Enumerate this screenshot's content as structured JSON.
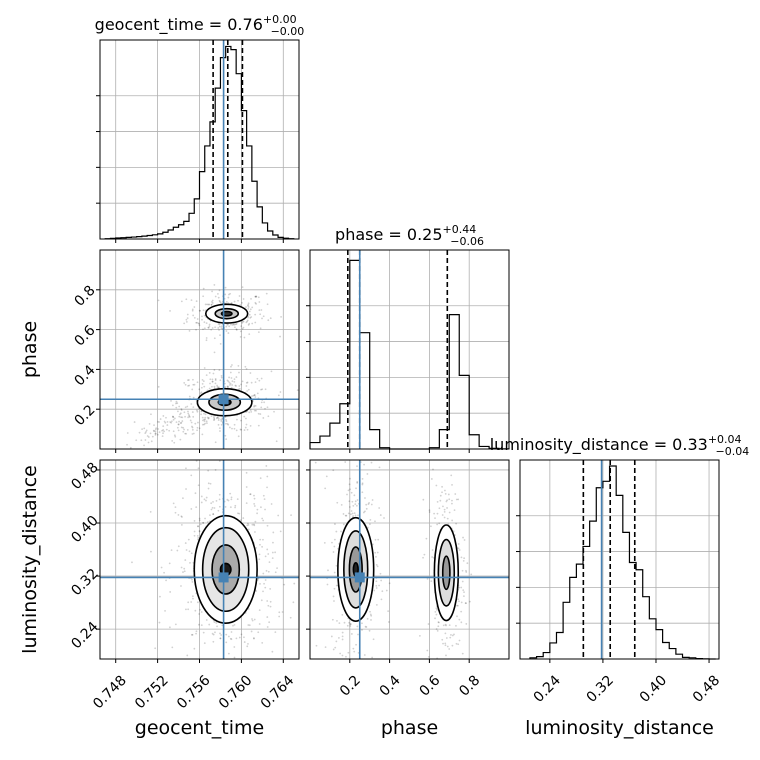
{
  "chart_data": {
    "type": "corner",
    "truth_color": "#4682b4",
    "hist_color": "#000000",
    "grid": true,
    "parameters": [
      {
        "name": "geocent_time",
        "xlim": [
          0.7465,
          0.7655
        ],
        "xticks": [
          0.748,
          0.752,
          0.756,
          0.76,
          0.764
        ],
        "xtick_labels": [
          "0.748",
          "0.752",
          "0.756",
          "0.760",
          "0.764"
        ],
        "truth": 0.7583,
        "quantiles": [
          0.7573,
          0.7587,
          0.7601
        ],
        "title_prefix": "geocent_time = ",
        "title_value": "0.76",
        "title_plus": "+0.00",
        "title_minus": "−0.00",
        "hist_edges": [
          0.747,
          0.7475,
          0.748,
          0.7485,
          0.749,
          0.7495,
          0.75,
          0.7505,
          0.751,
          0.7515,
          0.752,
          0.7525,
          0.753,
          0.7535,
          0.754,
          0.7545,
          0.755,
          0.7555,
          0.756,
          0.7565,
          0.757,
          0.7575,
          0.758,
          0.7585,
          0.759,
          0.7595,
          0.76,
          0.7605,
          0.761,
          0.7615,
          0.762,
          0.7625,
          0.763,
          0.7635,
          0.764,
          0.7645,
          0.765
        ],
        "hist_counts": [
          0.2,
          0.4,
          0.6,
          0.8,
          1.0,
          1.2,
          1.5,
          1.8,
          2.2,
          2.6,
          3.2,
          4.2,
          5.6,
          7.3,
          8.9,
          11,
          16,
          25,
          42,
          58,
          73,
          94,
          113,
          120,
          118,
          103,
          80,
          58,
          36,
          20,
          10,
          5,
          2.5,
          1.0,
          0.5,
          0.2
        ],
        "hist_ymax": 124
      },
      {
        "name": "phase",
        "xlim": [
          0.0,
          1.0
        ],
        "xticks": [
          0.2,
          0.4,
          0.6,
          0.8
        ],
        "xtick_labels": [
          "0.2",
          "0.4",
          "0.6",
          "0.8"
        ],
        "yticks": [
          0.2,
          0.4,
          0.6,
          0.8
        ],
        "ytick_labels": [
          "0.2",
          "0.4",
          "0.6",
          "0.8"
        ],
        "truth": 0.25,
        "quantiles": [
          0.19,
          0.25,
          0.69
        ],
        "title_prefix": "phase = ",
        "title_value": "0.25",
        "title_plus": "+0.44",
        "title_minus": "−0.06",
        "hist_edges": [
          0.0,
          0.05,
          0.1,
          0.15,
          0.2,
          0.25,
          0.3,
          0.35,
          0.4,
          0.45,
          0.5,
          0.55,
          0.6,
          0.65,
          0.7,
          0.75,
          0.8,
          0.85,
          0.9,
          0.95,
          1.0
        ],
        "hist_counts": [
          0.5,
          1.0,
          2.0,
          3.5,
          14.6,
          9.0,
          1.5,
          0.1,
          0.0,
          0.0,
          0.0,
          0.0,
          0.1,
          1.5,
          10.4,
          5.7,
          1.1,
          0.2,
          0.05,
          0.01
        ],
        "hist_ymax": 15.4
      },
      {
        "name": "luminosity_distance",
        "xlim": [
          0.195,
          0.495
        ],
        "xticks": [
          0.24,
          0.32,
          0.4,
          0.48
        ],
        "xtick_labels": [
          "0.24",
          "0.32",
          "0.40",
          "0.48"
        ],
        "yticks": [
          0.24,
          0.32,
          0.4,
          0.48
        ],
        "ytick_labels": [
          "0.24",
          "0.32",
          "0.40",
          "0.48"
        ],
        "truth": 0.318,
        "quantiles": [
          0.2905,
          0.331,
          0.368
        ],
        "title_prefix": "luminosity_distance = ",
        "title_value": "0.33",
        "title_plus": "+0.04",
        "title_minus": "−0.04",
        "hist_edges": [
          0.21,
          0.22,
          0.23,
          0.24,
          0.25,
          0.26,
          0.27,
          0.28,
          0.29,
          0.3,
          0.31,
          0.32,
          0.33,
          0.34,
          0.35,
          0.36,
          0.37,
          0.38,
          0.39,
          0.4,
          0.41,
          0.42,
          0.43,
          0.44,
          0.45,
          0.46,
          0.47,
          0.48,
          0.49
        ],
        "hist_counts": [
          0.3,
          0.6,
          1.6,
          4.0,
          6.6,
          14.1,
          20.3,
          23.6,
          28.0,
          34.3,
          42.6,
          44.2,
          48.0,
          40.7,
          31.5,
          24.0,
          22.2,
          15.5,
          10.0,
          7.3,
          4.1,
          2.6,
          1.2,
          0.4,
          0.3,
          0.1,
          0.05,
          0.0
        ],
        "hist_ymax": 49.5
      }
    ],
    "pairs": [
      {
        "row": 1,
        "col": 0,
        "blobs": [
          {
            "cx": 0.7586,
            "cy": 0.68,
            "sx": 0.0011,
            "sy": 0.034,
            "weight": 0.4
          },
          {
            "cx": 0.7584,
            "cy": 0.235,
            "sx": 0.0013,
            "sy": 0.045,
            "weight": 0.6
          }
        ],
        "tail": {
          "from": [
            0.7485,
            0.02
          ],
          "to": [
            0.757,
            0.2
          ]
        },
        "levels": [
          {
            "blob": 0,
            "rx": 0.002,
            "ry": 0.047,
            "fill": "#ffffff"
          },
          {
            "blob": 0,
            "rx": 0.0011,
            "ry": 0.025,
            "fill": "#c8c8c8"
          },
          {
            "blob": 0,
            "rx": 0.0005,
            "ry": 0.011,
            "fill": "#333333"
          },
          {
            "blob": 1,
            "rx": 0.0026,
            "ry": 0.068,
            "fill": "#ffffff"
          },
          {
            "blob": 1,
            "rx": 0.0015,
            "ry": 0.04,
            "fill": "#c8c8c8"
          },
          {
            "blob": 1,
            "rx": 0.0006,
            "ry": 0.016,
            "fill": "#222222"
          }
        ]
      },
      {
        "row": 2,
        "col": 0,
        "blobs": [
          {
            "cx": 0.7585,
            "cy": 0.33,
            "sx": 0.0014,
            "sy": 0.04,
            "weight": 1.0
          }
        ],
        "levels": [
          {
            "blob": 0,
            "rx": 0.003,
            "ry": 0.081,
            "fill": "#ffffff"
          },
          {
            "blob": 0,
            "rx": 0.0022,
            "ry": 0.063,
            "fill": "#e6e6e6"
          },
          {
            "blob": 0,
            "rx": 0.0013,
            "ry": 0.037,
            "fill": "#aaaaaa"
          },
          {
            "blob": 0,
            "rx": 0.0005,
            "ry": 0.009,
            "fill": "#1a1a1a"
          }
        ]
      },
      {
        "row": 2,
        "col": 1,
        "blobs": [
          {
            "cx": 0.23,
            "cy": 0.33,
            "sx": 0.035,
            "sy": 0.045,
            "weight": 0.6
          },
          {
            "cx": 0.685,
            "cy": 0.325,
            "sx": 0.028,
            "sy": 0.042,
            "weight": 0.4
          }
        ],
        "levels": [
          {
            "blob": 0,
            "rx": 0.09,
            "ry": 0.078,
            "fill": "#ffffff"
          },
          {
            "blob": 0,
            "rx": 0.06,
            "ry": 0.058,
            "fill": "#dddddd"
          },
          {
            "blob": 0,
            "rx": 0.032,
            "ry": 0.034,
            "fill": "#999999"
          },
          {
            "blob": 0,
            "rx": 0.012,
            "ry": 0.01,
            "fill": "#222222"
          },
          {
            "blob": 1,
            "rx": 0.06,
            "ry": 0.072,
            "fill": "#ffffff"
          },
          {
            "blob": 1,
            "rx": 0.04,
            "ry": 0.05,
            "fill": "#dddddd"
          },
          {
            "blob": 1,
            "rx": 0.018,
            "ry": 0.025,
            "fill": "#999999"
          }
        ]
      }
    ]
  }
}
